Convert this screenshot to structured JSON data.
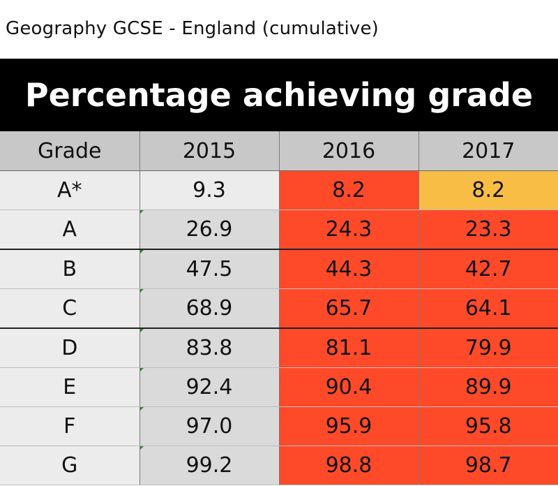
{
  "caption": "Geography GCSE - England (cumulative)",
  "chart_data": {
    "type": "table",
    "title": "Percentage achieving grade",
    "columns": [
      "Grade",
      "2015",
      "2016",
      "2017"
    ],
    "rows": [
      {
        "grade": "A*",
        "values": [
          "9.3",
          "8.2",
          "8.2"
        ]
      },
      {
        "grade": "A",
        "values": [
          "26.9",
          "24.3",
          "23.3"
        ]
      },
      {
        "grade": "B",
        "values": [
          "47.5",
          "44.3",
          "42.7"
        ]
      },
      {
        "grade": "C",
        "values": [
          "68.9",
          "65.7",
          "64.1"
        ]
      },
      {
        "grade": "D",
        "values": [
          "83.8",
          "81.1",
          "79.9"
        ]
      },
      {
        "grade": "E",
        "values": [
          "92.4",
          "90.4",
          "89.9"
        ]
      },
      {
        "grade": "F",
        "values": [
          "97.0",
          "95.9",
          "95.8"
        ]
      },
      {
        "grade": "G",
        "values": [
          "99.2",
          "98.8",
          "98.7"
        ]
      }
    ],
    "cell_colors": {
      "header": "#c8c8c8",
      "grade_column": "#ececec",
      "baseline_2015": "#dadada",
      "decrease": "#ff4a2a",
      "no_change": "#f8bd45"
    },
    "highlight": [
      [
        "none",
        "decrease",
        "no_change"
      ],
      [
        "none",
        "decrease",
        "decrease"
      ],
      [
        "none",
        "decrease",
        "decrease"
      ],
      [
        "none",
        "decrease",
        "decrease"
      ],
      [
        "none",
        "decrease",
        "decrease"
      ],
      [
        "none",
        "decrease",
        "decrease"
      ],
      [
        "none",
        "decrease",
        "decrease"
      ],
      [
        "none",
        "decrease",
        "decrease"
      ]
    ]
  }
}
